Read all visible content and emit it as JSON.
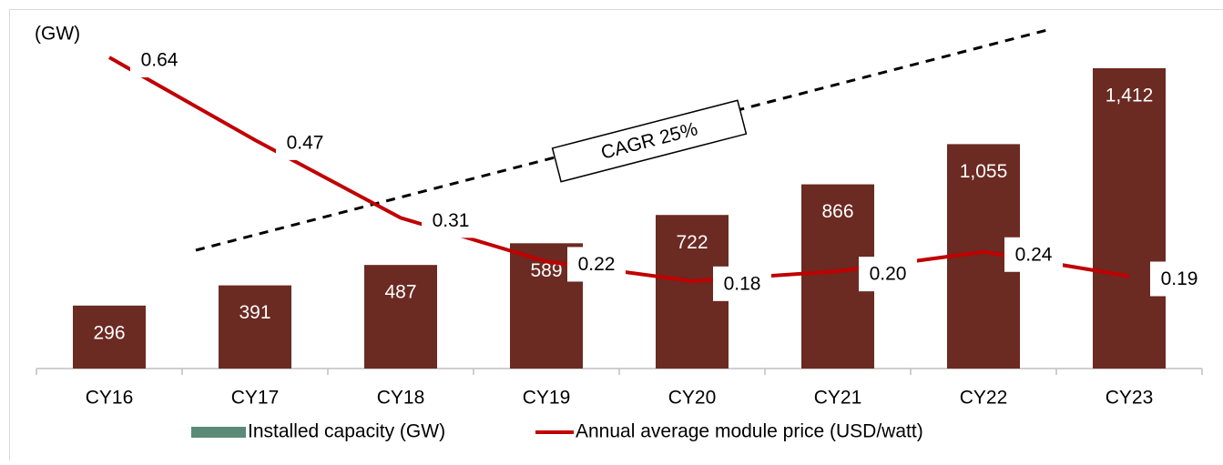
{
  "chart_data": {
    "type": "bar",
    "y_label": "(GW)",
    "annotation": "CAGR 25%",
    "categories": [
      "CY16",
      "CY17",
      "CY18",
      "CY19",
      "CY20",
      "CY21",
      "CY22",
      "CY23"
    ],
    "series": [
      {
        "name": "Installed capacity (GW)",
        "type": "bar",
        "color": "#6b2a22",
        "legend_color": "#5b8a78",
        "values": [
          296,
          391,
          487,
          589,
          722,
          866,
          1055,
          1412
        ],
        "value_labels": [
          "296",
          "391",
          "487",
          "589",
          "722",
          "866",
          "1,055",
          "1,412"
        ]
      },
      {
        "name": "Annual average module price (USD/watt)",
        "type": "line",
        "axis": "y2",
        "color": "#c00000",
        "values": [
          0.64,
          0.47,
          0.31,
          0.22,
          0.18,
          0.2,
          0.24,
          0.19
        ],
        "value_labels": [
          "0.64",
          "0.47",
          "0.31",
          "0.22",
          "0.18",
          "0.20",
          "0.24",
          "0.19"
        ]
      }
    ],
    "ylim": [
      0,
      1600
    ],
    "y2lim": [
      0,
      0.7
    ]
  }
}
